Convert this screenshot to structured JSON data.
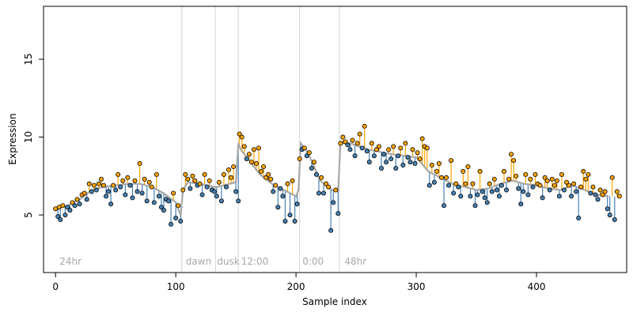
{
  "chart_data": {
    "type": "scatter",
    "title": "",
    "xlabel": "Sample index",
    "ylabel": "Expression",
    "xlim": [
      -10,
      475
    ],
    "ylim": [
      1.3,
      18.4
    ],
    "x_ticks": [
      0,
      100,
      200,
      300,
      400
    ],
    "y_ticks": [
      5,
      10,
      15
    ],
    "grid": false,
    "legend": "none",
    "period_boundaries": [
      105,
      133,
      152,
      203,
      236
    ],
    "period_labels": [
      {
        "x": 2,
        "text": "24hr"
      },
      {
        "x": 107,
        "text": "dawn"
      },
      {
        "x": 133,
        "text": "dusk"
      },
      {
        "x": 153,
        "text": "12:00"
      },
      {
        "x": 204,
        "text": "0:00"
      },
      {
        "x": 239,
        "text": "48hr"
      }
    ],
    "period_label_y": 2.0,
    "smooth_x": [
      0,
      10,
      20,
      30,
      40,
      50,
      60,
      70,
      80,
      90,
      100,
      104,
      106,
      110,
      120,
      132,
      134,
      140,
      150,
      152,
      154,
      160,
      170,
      180,
      190,
      200,
      202,
      204,
      210,
      220,
      230,
      235,
      237,
      245,
      260,
      280,
      300,
      310,
      320,
      330,
      340,
      350,
      360,
      370,
      380,
      390,
      400,
      410,
      420,
      430,
      440,
      450,
      460
    ],
    "smooth_y": [
      5.4,
      5.6,
      6.0,
      6.6,
      6.8,
      6.9,
      7.0,
      7.0,
      6.8,
      6.4,
      5.8,
      5.0,
      6.6,
      7.1,
      7.0,
      6.8,
      6.8,
      6.9,
      7.1,
      9.6,
      9.2,
      8.6,
      7.6,
      7.0,
      6.6,
      6.2,
      6.6,
      9.6,
      9.0,
      7.2,
      6.6,
      6.5,
      9.6,
      9.6,
      9.2,
      8.9,
      8.7,
      7.8,
      7.4,
      7.0,
      6.8,
      6.6,
      6.7,
      7.0,
      7.2,
      7.0,
      6.9,
      6.7,
      6.6,
      6.9,
      6.6,
      6.3,
      6.2
    ],
    "points": [
      [
        0,
        5.4
      ],
      [
        2,
        4.9
      ],
      [
        3,
        5.5
      ],
      [
        4,
        4.7
      ],
      [
        6,
        5.6
      ],
      [
        8,
        5.0
      ],
      [
        10,
        5.5
      ],
      [
        12,
        5.3
      ],
      [
        14,
        5.8
      ],
      [
        16,
        5.6
      ],
      [
        18,
        6.0
      ],
      [
        20,
        5.7
      ],
      [
        22,
        6.3
      ],
      [
        24,
        6.4
      ],
      [
        26,
        6.0
      ],
      [
        28,
        7.0
      ],
      [
        30,
        6.5
      ],
      [
        32,
        6.9
      ],
      [
        34,
        6.6
      ],
      [
        36,
        7.0
      ],
      [
        38,
        7.3
      ],
      [
        40,
        6.9
      ],
      [
        42,
        6.2
      ],
      [
        44,
        6.5
      ],
      [
        46,
        5.7
      ],
      [
        48,
        6.9
      ],
      [
        50,
        6.6
      ],
      [
        52,
        7.6
      ],
      [
        54,
        6.8
      ],
      [
        56,
        7.2
      ],
      [
        58,
        6.3
      ],
      [
        60,
        7.4
      ],
      [
        62,
        6.9
      ],
      [
        64,
        6.1
      ],
      [
        66,
        7.2
      ],
      [
        68,
        6.5
      ],
      [
        70,
        8.3
      ],
      [
        72,
        6.4
      ],
      [
        74,
        7.3
      ],
      [
        76,
        5.9
      ],
      [
        78,
        7.1
      ],
      [
        80,
        6.8
      ],
      [
        82,
        5.8
      ],
      [
        84,
        7.6
      ],
      [
        86,
        6.2
      ],
      [
        88,
        5.5
      ],
      [
        90,
        5.3
      ],
      [
        92,
        6.0
      ],
      [
        94,
        5.9
      ],
      [
        96,
        4.4
      ],
      [
        98,
        6.4
      ],
      [
        100,
        4.8
      ],
      [
        102,
        5.6
      ],
      [
        104,
        4.6
      ],
      [
        106,
        6.6
      ],
      [
        108,
        7.6
      ],
      [
        110,
        7.3
      ],
      [
        112,
        6.7
      ],
      [
        114,
        7.5
      ],
      [
        116,
        7.2
      ],
      [
        118,
        6.9
      ],
      [
        120,
        7.0
      ],
      [
        122,
        6.3
      ],
      [
        124,
        7.6
      ],
      [
        126,
        6.8
      ],
      [
        128,
        7.2
      ],
      [
        130,
        6.6
      ],
      [
        132,
        6.5
      ],
      [
        134,
        6.2
      ],
      [
        136,
        7.1
      ],
      [
        138,
        5.9
      ],
      [
        140,
        7.6
      ],
      [
        142,
        6.8
      ],
      [
        144,
        7.9
      ],
      [
        146,
        7.4
      ],
      [
        148,
        8.1
      ],
      [
        150,
        6.5
      ],
      [
        152,
        5.9
      ],
      [
        153,
        10.2
      ],
      [
        155,
        10.0
      ],
      [
        157,
        9.4
      ],
      [
        159,
        8.6
      ],
      [
        161,
        8.9
      ],
      [
        163,
        8.4
      ],
      [
        165,
        9.2
      ],
      [
        167,
        8.3
      ],
      [
        169,
        9.3
      ],
      [
        171,
        7.8
      ],
      [
        173,
        8.1
      ],
      [
        175,
        7.4
      ],
      [
        177,
        7.6
      ],
      [
        179,
        7.3
      ],
      [
        181,
        6.5
      ],
      [
        183,
        6.9
      ],
      [
        185,
        5.5
      ],
      [
        187,
        6.7
      ],
      [
        189,
        6.2
      ],
      [
        191,
        4.6
      ],
      [
        193,
        7.0
      ],
      [
        195,
        5.0
      ],
      [
        197,
        7.2
      ],
      [
        199,
        4.6
      ],
      [
        201,
        5.7
      ],
      [
        203,
        8.6
      ],
      [
        205,
        9.2
      ],
      [
        207,
        9.3
      ],
      [
        209,
        8.8
      ],
      [
        211,
        9.0
      ],
      [
        213,
        8.0
      ],
      [
        215,
        8.4
      ],
      [
        217,
        7.6
      ],
      [
        219,
        6.4
      ],
      [
        221,
        7.4
      ],
      [
        223,
        6.4
      ],
      [
        225,
        7.0
      ],
      [
        227,
        6.8
      ],
      [
        229,
        4.0
      ],
      [
        231,
        5.8
      ],
      [
        233,
        6.6
      ],
      [
        235,
        5.1
      ],
      [
        237,
        9.6
      ],
      [
        239,
        10.0
      ],
      [
        241,
        9.7
      ],
      [
        243,
        9.5
      ],
      [
        245,
        9.2
      ],
      [
        247,
        9.8
      ],
      [
        249,
        8.8
      ],
      [
        251,
        9.6
      ],
      [
        253,
        10.2
      ],
      [
        255,
        9.3
      ],
      [
        257,
        10.7
      ],
      [
        259,
        9.1
      ],
      [
        261,
        8.4
      ],
      [
        263,
        9.6
      ],
      [
        265,
        8.8
      ],
      [
        267,
        9.2
      ],
      [
        269,
        9.4
      ],
      [
        271,
        8.0
      ],
      [
        273,
        8.9
      ],
      [
        275,
        8.4
      ],
      [
        277,
        9.2
      ],
      [
        279,
        8.6
      ],
      [
        281,
        9.4
      ],
      [
        283,
        8.0
      ],
      [
        285,
        8.8
      ],
      [
        287,
        9.3
      ],
      [
        289,
        8.2
      ],
      [
        291,
        9.6
      ],
      [
        293,
        8.7
      ],
      [
        295,
        8.4
      ],
      [
        297,
        9.2
      ],
      [
        299,
        8.3
      ],
      [
        301,
        9.0
      ],
      [
        303,
        8.6
      ],
      [
        305,
        9.9
      ],
      [
        307,
        9.4
      ],
      [
        309,
        9.3
      ],
      [
        311,
        6.9
      ],
      [
        313,
        8.2
      ],
      [
        315,
        7.1
      ],
      [
        317,
        7.8
      ],
      [
        319,
        8.3
      ],
      [
        321,
        7.4
      ],
      [
        323,
        5.6
      ],
      [
        325,
        7.4
      ],
      [
        327,
        6.9
      ],
      [
        329,
        8.5
      ],
      [
        331,
        6.4
      ],
      [
        333,
        7.0
      ],
      [
        335,
        6.8
      ],
      [
        337,
        6.2
      ],
      [
        339,
        7.8
      ],
      [
        341,
        7.0
      ],
      [
        343,
        8.1
      ],
      [
        345,
        6.2
      ],
      [
        347,
        7.0
      ],
      [
        349,
        5.6
      ],
      [
        351,
        6.3
      ],
      [
        353,
        7.8
      ],
      [
        355,
        6.5
      ],
      [
        357,
        6.1
      ],
      [
        359,
        5.8
      ],
      [
        361,
        7.0
      ],
      [
        363,
        6.5
      ],
      [
        365,
        7.3
      ],
      [
        367,
        6.6
      ],
      [
        369,
        6.2
      ],
      [
        371,
        6.9
      ],
      [
        373,
        7.8
      ],
      [
        375,
        6.6
      ],
      [
        377,
        7.3
      ],
      [
        379,
        8.9
      ],
      [
        381,
        8.5
      ],
      [
        383,
        7.5
      ],
      [
        385,
        6.7
      ],
      [
        387,
        5.7
      ],
      [
        389,
        6.5
      ],
      [
        391,
        7.6
      ],
      [
        393,
        6.3
      ],
      [
        395,
        7.3
      ],
      [
        397,
        6.8
      ],
      [
        399,
        7.6
      ],
      [
        401,
        7.0
      ],
      [
        403,
        6.9
      ],
      [
        405,
        6.1
      ],
      [
        407,
        7.4
      ],
      [
        409,
        7.2
      ],
      [
        411,
        6.6
      ],
      [
        413,
        7.3
      ],
      [
        415,
        6.9
      ],
      [
        417,
        7.2
      ],
      [
        419,
        6.2
      ],
      [
        421,
        7.6
      ],
      [
        423,
        6.6
      ],
      [
        425,
        7.1
      ],
      [
        427,
        6.9
      ],
      [
        429,
        6.2
      ],
      [
        431,
        7.0
      ],
      [
        433,
        6.5
      ],
      [
        435,
        4.8
      ],
      [
        437,
        6.8
      ],
      [
        439,
        7.8
      ],
      [
        441,
        7.3
      ],
      [
        443,
        7.6
      ],
      [
        445,
        6.4
      ],
      [
        447,
        6.8
      ],
      [
        449,
        6.3
      ],
      [
        451,
        6.0
      ],
      [
        453,
        6.6
      ],
      [
        455,
        6.3
      ],
      [
        457,
        6.5
      ],
      [
        459,
        5.4
      ],
      [
        461,
        5.0
      ],
      [
        463,
        7.4
      ],
      [
        465,
        4.7
      ],
      [
        467,
        6.5
      ],
      [
        469,
        6.2
      ]
    ],
    "colors": {
      "above": "#ffa500",
      "below": "#4682b4",
      "smooth": "#a9a9a9",
      "boundary": "#d3d3d3",
      "point_stroke": "#000000",
      "label": "#a8a8a8"
    }
  }
}
